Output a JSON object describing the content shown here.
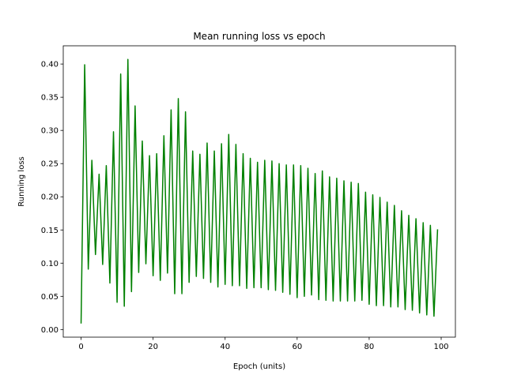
{
  "chart_data": {
    "type": "line",
    "title": "Mean running loss vs epoch",
    "xlabel": "Epoch (units)",
    "ylabel": "Running loss",
    "xlim": [
      -4.95,
      103.95
    ],
    "ylim": [
      -0.0115,
      0.4275
    ],
    "xticks": [
      0,
      20,
      40,
      60,
      80,
      100
    ],
    "yticks": [
      0.0,
      0.05,
      0.1,
      0.15,
      0.2,
      0.25,
      0.3,
      0.35,
      0.4
    ],
    "xtick_labels": [
      "0",
      "20",
      "40",
      "60",
      "80",
      "100"
    ],
    "ytick_labels": [
      "0.00",
      "0.05",
      "0.10",
      "0.15",
      "0.20",
      "0.25",
      "0.30",
      "0.35",
      "0.40"
    ],
    "grid": false,
    "series": [
      {
        "color": "#008000",
        "x": [
          0,
          1,
          2,
          3,
          4,
          5,
          6,
          7,
          8,
          9,
          10,
          11,
          12,
          13,
          14,
          15,
          16,
          17,
          18,
          19,
          20,
          21,
          22,
          23,
          24,
          25,
          26,
          27,
          28,
          29,
          30,
          31,
          32,
          33,
          34,
          35,
          36,
          37,
          38,
          39,
          40,
          41,
          42,
          43,
          44,
          45,
          46,
          47,
          48,
          49,
          50,
          51,
          52,
          53,
          54,
          55,
          56,
          57,
          58,
          59,
          60,
          61,
          62,
          63,
          64,
          65,
          66,
          67,
          68,
          69,
          70,
          71,
          72,
          73,
          74,
          75,
          76,
          77,
          78,
          79,
          80,
          81,
          82,
          83,
          84,
          85,
          86,
          87,
          88,
          89,
          90,
          91,
          92,
          93,
          94,
          95,
          96,
          97,
          98,
          99
        ],
        "y": [
          0.009,
          0.399,
          0.091,
          0.255,
          0.113,
          0.234,
          0.098,
          0.247,
          0.07,
          0.298,
          0.041,
          0.385,
          0.035,
          0.407,
          0.057,
          0.337,
          0.086,
          0.284,
          0.099,
          0.262,
          0.081,
          0.265,
          0.074,
          0.292,
          0.085,
          0.331,
          0.054,
          0.348,
          0.054,
          0.328,
          0.071,
          0.269,
          0.08,
          0.264,
          0.077,
          0.281,
          0.071,
          0.269,
          0.064,
          0.28,
          0.068,
          0.294,
          0.066,
          0.279,
          0.066,
          0.265,
          0.062,
          0.258,
          0.063,
          0.252,
          0.063,
          0.255,
          0.06,
          0.254,
          0.059,
          0.25,
          0.056,
          0.248,
          0.053,
          0.248,
          0.048,
          0.247,
          0.05,
          0.243,
          0.052,
          0.235,
          0.045,
          0.239,
          0.044,
          0.23,
          0.043,
          0.228,
          0.043,
          0.224,
          0.043,
          0.222,
          0.043,
          0.22,
          0.044,
          0.207,
          0.038,
          0.203,
          0.036,
          0.199,
          0.036,
          0.192,
          0.034,
          0.187,
          0.034,
          0.179,
          0.03,
          0.172,
          0.029,
          0.167,
          0.025,
          0.161,
          0.022,
          0.157,
          0.02,
          0.151
        ]
      }
    ]
  }
}
